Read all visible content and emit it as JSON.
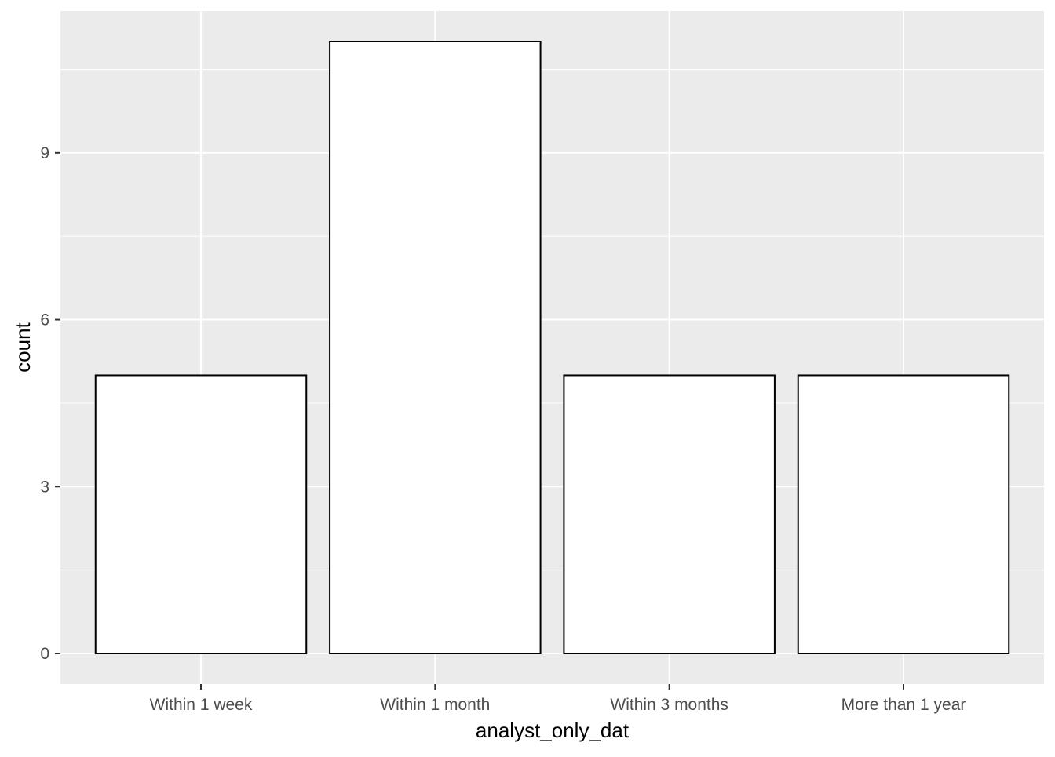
{
  "chart_data": {
    "type": "bar",
    "categories": [
      "Within 1 week",
      "Within 1 month",
      "Within 3 months",
      "More than 1 year"
    ],
    "values": [
      5,
      11,
      5,
      5
    ],
    "xlabel": "analyst_only_dat",
    "ylabel": "count",
    "ylim": [
      -0.55,
      11.55
    ],
    "yticks": [
      0,
      3,
      6,
      9
    ],
    "yticks_labels": [
      "0",
      "3",
      "6",
      "9"
    ],
    "grid": true,
    "legend": "none",
    "colors": {
      "panel_background": "#ebebeb",
      "grid": "#ffffff",
      "bar_fill": "#ffffff",
      "bar_outline": "#000000",
      "tick_text": "#4d4d4d",
      "tick_mark": "#333333",
      "title_text": "#000000"
    }
  }
}
